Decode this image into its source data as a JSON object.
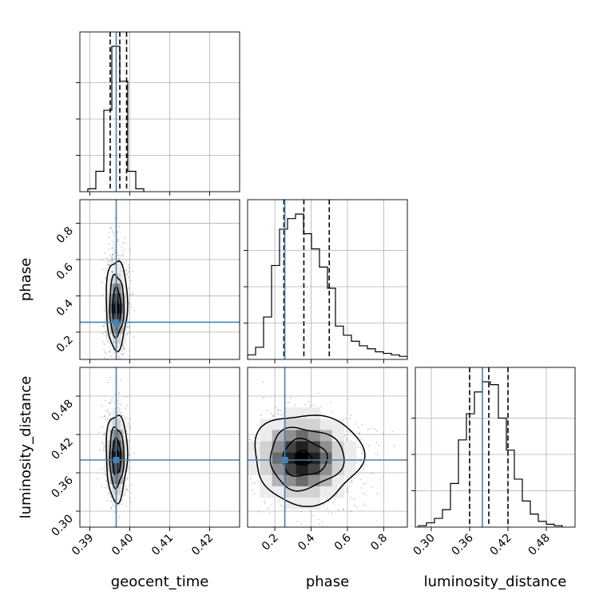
{
  "colors": {
    "truth": "#4682b4",
    "hist": "#000000",
    "grid": "#b0b0b0",
    "points": "#000000"
  },
  "params": [
    {
      "key": "geocent_time",
      "label": "geocent_time",
      "range": [
        0.3875,
        0.4275
      ],
      "ticks": [
        0.39,
        0.4,
        0.41,
        0.42
      ],
      "tick_labels": [
        "0.39",
        "0.40",
        "0.41",
        "0.42"
      ],
      "truth": 0.3966
    },
    {
      "key": "phase",
      "label": "phase",
      "range": [
        0.05,
        0.93
      ],
      "ticks": [
        0.2,
        0.4,
        0.6,
        0.8
      ],
      "tick_labels": [
        "0.2",
        "0.4",
        "0.6",
        "0.8"
      ],
      "truth": 0.255
    },
    {
      "key": "luminosity_distance",
      "label": "luminosity_distance",
      "range": [
        0.275,
        0.525
      ],
      "ticks": [
        0.3,
        0.36,
        0.42,
        0.48
      ],
      "tick_labels": [
        "0.30",
        "0.36",
        "0.42",
        "0.48"
      ],
      "truth": 0.38
    }
  ],
  "chart_data": {
    "type": "corner",
    "title": "",
    "grid": true,
    "marginals": [
      {
        "param": "geocent_time",
        "bin_edges": [
          0.3895,
          0.3915,
          0.3935,
          0.3955,
          0.3975,
          0.3995,
          0.4015,
          0.4035
        ],
        "counts": [
          0.02,
          0.14,
          0.56,
          1.0,
          0.76,
          0.14,
          0.02
        ],
        "quantiles": [
          0.3951,
          0.3975,
          0.3992
        ]
      },
      {
        "param": "phase",
        "bin_edges": [
          0.05,
          0.094,
          0.138,
          0.182,
          0.226,
          0.27,
          0.314,
          0.358,
          0.402,
          0.446,
          0.49,
          0.534,
          0.578,
          0.622,
          0.666,
          0.71,
          0.754,
          0.798,
          0.842,
          0.886,
          0.93
        ],
        "counts": [
          0.03,
          0.08,
          0.28,
          0.62,
          0.86,
          0.93,
          0.96,
          0.83,
          0.73,
          0.61,
          0.47,
          0.22,
          0.16,
          0.12,
          0.09,
          0.07,
          0.05,
          0.04,
          0.03,
          0.02
        ],
        "quantiles": [
          0.25,
          0.36,
          0.5
        ]
      },
      {
        "param": "luminosity_distance",
        "bin_edges": [
          0.28,
          0.2925,
          0.305,
          0.3175,
          0.33,
          0.3425,
          0.355,
          0.3675,
          0.38,
          0.3925,
          0.405,
          0.4175,
          0.43,
          0.4425,
          0.455,
          0.4675,
          0.48,
          0.4925,
          0.505
        ],
        "counts": [
          0.01,
          0.03,
          0.06,
          0.12,
          0.3,
          0.6,
          0.78,
          0.93,
          1.0,
          0.98,
          0.75,
          0.53,
          0.33,
          0.18,
          0.09,
          0.04,
          0.02,
          0.01
        ],
        "quantiles": [
          0.36,
          0.39,
          0.42
        ]
      }
    ],
    "pairs": [
      {
        "x": "geocent_time",
        "y": "phase",
        "center": [
          0.3967,
          0.33
        ],
        "spread": [
          0.0012,
          0.1
        ],
        "contour_scales": [
          0.35,
          0.9,
          1.5,
          2.2
        ],
        "truth": [
          0.3966,
          0.255
        ]
      },
      {
        "x": "geocent_time",
        "y": "luminosity_distance",
        "center": [
          0.3967,
          0.385
        ],
        "spread": [
          0.0012,
          0.031
        ],
        "contour_scales": [
          0.35,
          0.9,
          1.5,
          2.2
        ],
        "truth": [
          0.3966,
          0.38
        ]
      },
      {
        "x": "phase",
        "y": "luminosity_distance",
        "center": [
          0.35,
          0.383
        ],
        "spread": [
          0.12,
          0.032
        ],
        "contour_scales": [
          0.35,
          0.9,
          1.5,
          2.2
        ],
        "truth": [
          0.255,
          0.38
        ]
      }
    ]
  }
}
